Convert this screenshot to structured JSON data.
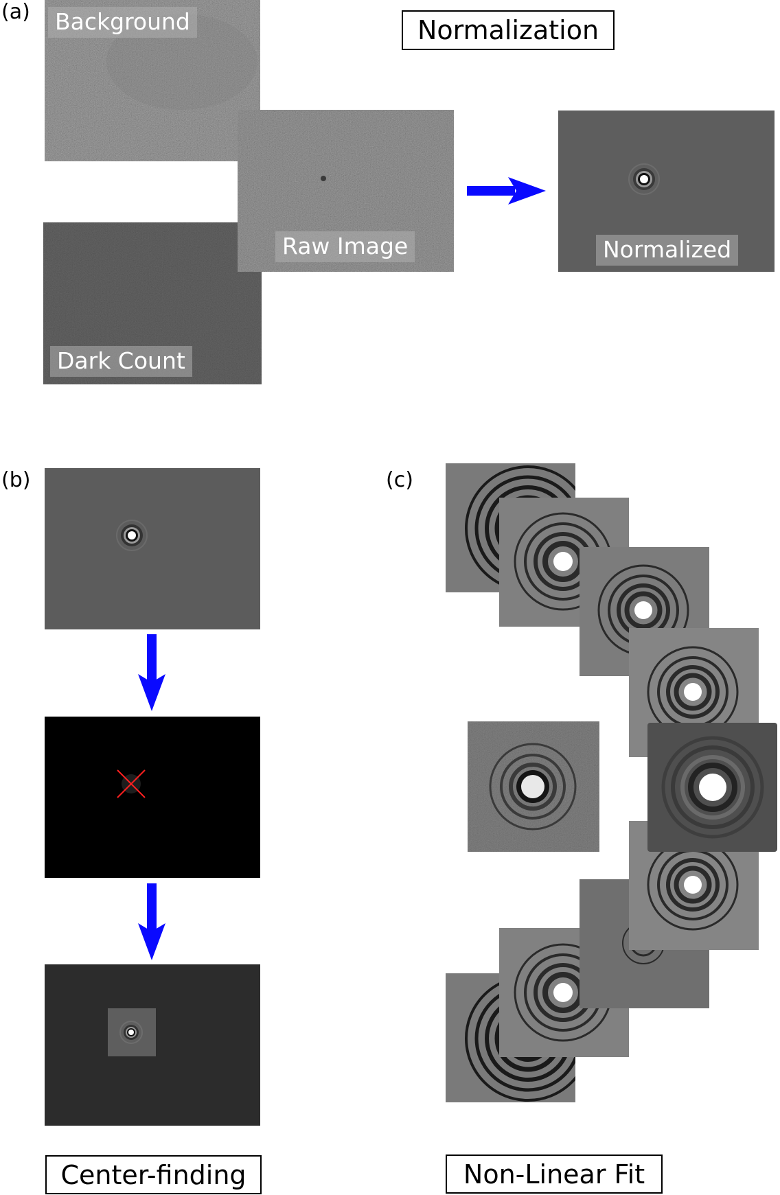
{
  "panel_a": {
    "label": "(a)",
    "title": "Normalization",
    "images": {
      "background": "Background",
      "raw": "Raw Image",
      "dark": "Dark Count",
      "normalized": "Normalized"
    }
  },
  "panel_b": {
    "label": "(b)",
    "title": "Center-finding"
  },
  "panel_c": {
    "label": "(c)",
    "title": "Non-Linear Fit"
  },
  "colors": {
    "arrow": "#0a0aff",
    "marker": "#ff2020"
  }
}
